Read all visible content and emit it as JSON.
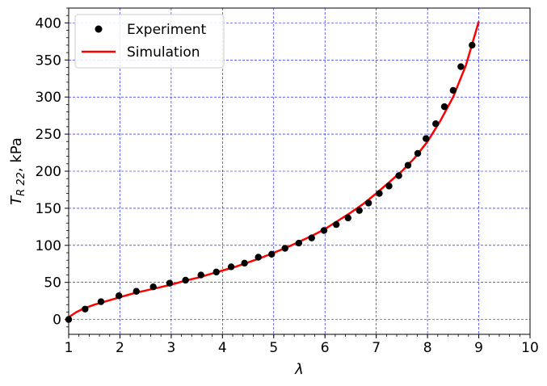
{
  "chart_data": {
    "type": "scatter",
    "xlabel": "λ",
    "ylabel_main": "T",
    "ylabel_sub": "R 22",
    "ylabel_rest": ", kPa",
    "xlim": [
      1,
      10
    ],
    "ylim": [
      -20,
      420
    ],
    "x_ticks": [
      "1",
      "2",
      "3",
      "4",
      "5",
      "6",
      "7",
      "8",
      "9",
      "10"
    ],
    "y_ticks": [
      "0",
      "50",
      "100",
      "150",
      "200",
      "250",
      "300",
      "350",
      "400"
    ],
    "x_tick_values": [
      1,
      2,
      3,
      4,
      5,
      6,
      7,
      8,
      9,
      10
    ],
    "y_tick_values": [
      0,
      50,
      100,
      150,
      200,
      250,
      300,
      350,
      400
    ],
    "grid": true,
    "grid_color": "#0000ff",
    "legend_position": "top-left",
    "series": [
      {
        "name": "Experiment",
        "kind": "scatter",
        "color": "#000000",
        "x": [
          1.0,
          1.32,
          1.63,
          1.98,
          2.32,
          2.65,
          2.97,
          3.28,
          3.58,
          3.88,
          4.17,
          4.43,
          4.7,
          4.96,
          5.22,
          5.49,
          5.74,
          5.98,
          6.22,
          6.45,
          6.67,
          6.85,
          7.06,
          7.25,
          7.44,
          7.62,
          7.81,
          7.97,
          8.16,
          8.33,
          8.5,
          8.65,
          8.87
        ],
        "y": [
          0,
          14,
          24,
          32,
          38,
          44,
          49,
          53,
          60,
          64,
          71,
          76,
          84,
          88,
          96,
          103,
          110,
          120,
          128,
          137,
          147,
          157,
          170,
          180,
          194,
          208,
          224,
          244,
          264,
          287,
          309,
          341,
          370
        ]
      },
      {
        "name": "Simulation",
        "kind": "line",
        "color": "#ff0000",
        "x": [
          1.0,
          1.15,
          1.3,
          1.5,
          1.75,
          2.0,
          2.25,
          2.5,
          2.75,
          3.0,
          3.25,
          3.5,
          3.75,
          4.0,
          4.25,
          4.5,
          4.75,
          5.0,
          5.25,
          5.5,
          5.75,
          6.0,
          6.25,
          6.5,
          6.75,
          7.0,
          7.25,
          7.5,
          7.75,
          8.0,
          8.25,
          8.5,
          8.75,
          9.0
        ],
        "y": [
          3,
          10,
          15,
          20,
          25,
          30,
          35,
          39,
          43,
          47,
          52,
          56,
          61,
          66,
          71,
          77,
          83,
          90,
          97,
          105,
          113,
          122,
          133,
          144,
          156,
          170,
          185,
          200,
          218,
          240,
          268,
          300,
          343,
          402
        ]
      }
    ]
  }
}
